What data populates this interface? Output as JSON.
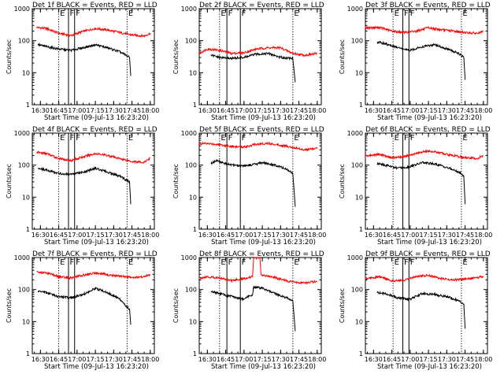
{
  "chart_data": [
    {
      "type": "line",
      "title": "Det 1f BLACK = Events, RED = LLD",
      "xlabel": "Start Time (09-Jul-13 16:23:20)",
      "ylabel": "Counts/sec",
      "ylog": true,
      "ylim": [
        1,
        1000
      ],
      "xlim": [
        "16:23:20",
        "18:03:20"
      ],
      "xticks": [
        "16:30",
        "16:45",
        "17:00",
        "17:15",
        "17:30",
        "17:45",
        "18:00"
      ],
      "yticks": [
        "1",
        "10",
        "100",
        "1000"
      ],
      "markers": [
        "E",
        "F",
        "F",
        "E"
      ],
      "marker_times": [
        "16:45",
        "16:53",
        "16:58",
        "17:41"
      ],
      "series": [
        {
          "name": "RED",
          "color": "#ff0000",
          "x": [
            "16:27",
            "16:35",
            "16:45",
            "16:55",
            "17:05",
            "17:15",
            "17:25",
            "17:35",
            "17:45",
            "17:55",
            "18:00"
          ],
          "values": [
            260,
            240,
            170,
            145,
            195,
            240,
            215,
            180,
            150,
            140,
            170
          ]
        },
        {
          "name": "BLACK",
          "color": "#000000",
          "x": [
            "16:28",
            "16:35",
            "16:45",
            "16:55",
            "17:05",
            "17:15",
            "17:25",
            "17:35",
            "17:40",
            "17:43",
            "17:44"
          ],
          "values": [
            75,
            65,
            55,
            50,
            60,
            75,
            60,
            45,
            35,
            30,
            8
          ]
        }
      ]
    },
    {
      "type": "line",
      "title": "Det 2f BLACK = Events, RED = LLD",
      "xlabel": "Start Time (09-Jul-13 16:23:20)",
      "ylabel": "Counts/sec",
      "ylog": true,
      "ylim": [
        1,
        1000
      ],
      "xlim": [
        "16:23:20",
        "18:03:20"
      ],
      "xticks": [
        "16:30",
        "16:45",
        "17:00",
        "17:15",
        "17:30",
        "17:45",
        "18:00"
      ],
      "yticks": [
        "1",
        "10",
        "100",
        "1000"
      ],
      "markers": [
        "E",
        "F",
        "F",
        "E"
      ],
      "marker_times": [
        "16:40",
        "16:46",
        "16:57",
        "17:40"
      ],
      "series": [
        {
          "name": "RED",
          "color": "#ff0000",
          "x": [
            "16:23",
            "16:30",
            "16:40",
            "16:50",
            "17:00",
            "17:10",
            "17:20",
            "17:30",
            "17:40",
            "17:50",
            "18:00"
          ],
          "values": [
            40,
            55,
            50,
            40,
            42,
            55,
            60,
            60,
            40,
            35,
            40
          ]
        },
        {
          "name": "BLACK",
          "color": "#000000",
          "x": [
            "16:33",
            "16:40",
            "16:50",
            "17:00",
            "17:10",
            "17:20",
            "17:30",
            "17:40",
            "17:42"
          ],
          "values": [
            35,
            30,
            28,
            30,
            38,
            40,
            30,
            28,
            5
          ]
        }
      ]
    },
    {
      "type": "line",
      "title": "Det 3f BLACK = Events, RED = LLD",
      "xlabel": "Start Time (09-Jul-13 16:23:20)",
      "ylabel": "Counts/sec",
      "ylog": true,
      "ylim": [
        1,
        1000
      ],
      "xlim": [
        "16:23:20",
        "18:03:20"
      ],
      "xticks": [
        "16:30",
        "16:45",
        "17:00",
        "17:15",
        "17:30",
        "17:45",
        "18:00"
      ],
      "yticks": [
        "1",
        "10",
        "100",
        "1000"
      ],
      "markers": [
        "E",
        "F",
        "F",
        "E"
      ],
      "marker_times": [
        "16:46",
        "16:54",
        "16:59",
        "17:42"
      ],
      "series": [
        {
          "name": "RED",
          "color": "#ff0000",
          "x": [
            "16:23",
            "16:35",
            "16:45",
            "16:55",
            "17:05",
            "17:15",
            "17:25",
            "17:35",
            "17:45",
            "17:55",
            "18:00"
          ],
          "values": [
            250,
            260,
            200,
            180,
            200,
            250,
            220,
            200,
            180,
            170,
            190
          ]
        },
        {
          "name": "BLACK",
          "color": "#000000",
          "x": [
            "16:33",
            "16:40",
            "16:50",
            "17:00",
            "17:10",
            "17:20",
            "17:30",
            "17:40",
            "17:44",
            "17:45"
          ],
          "values": [
            90,
            80,
            60,
            50,
            65,
            75,
            55,
            40,
            30,
            6
          ]
        }
      ]
    },
    {
      "type": "line",
      "title": "Det 4f BLACK = Events, RED = LLD",
      "xlabel": "Start Time (09-Jul-13 16:23:20)",
      "ylabel": "Counts/sec",
      "ylog": true,
      "ylim": [
        1,
        1000
      ],
      "xlim": [
        "16:23:20",
        "18:03:20"
      ],
      "xticks": [
        "16:30",
        "16:45",
        "17:00",
        "17:15",
        "17:30",
        "17:45",
        "18:00"
      ],
      "yticks": [
        "1",
        "10",
        "100",
        "1000"
      ],
      "markers": [
        "E",
        "F",
        "F",
        "E"
      ],
      "marker_times": [
        "16:45",
        "16:53",
        "16:58",
        "17:41"
      ],
      "series": [
        {
          "name": "RED",
          "color": "#ff0000",
          "x": [
            "16:27",
            "16:35",
            "16:45",
            "16:55",
            "17:05",
            "17:15",
            "17:25",
            "17:35",
            "17:45",
            "17:55",
            "18:00"
          ],
          "values": [
            250,
            230,
            160,
            140,
            180,
            230,
            200,
            160,
            130,
            120,
            170
          ]
        },
        {
          "name": "BLACK",
          "color": "#000000",
          "x": [
            "16:28",
            "16:35",
            "16:45",
            "16:55",
            "17:05",
            "17:15",
            "17:25",
            "17:35",
            "17:40",
            "17:43",
            "17:44"
          ],
          "values": [
            80,
            70,
            55,
            50,
            60,
            80,
            60,
            45,
            35,
            30,
            6
          ]
        }
      ]
    },
    {
      "type": "line",
      "title": "Det 5f BLACK = Events, RED = LLD",
      "xlabel": "Start Time (09-Jul-13 16:23:20)",
      "ylabel": "Counts/sec",
      "ylog": true,
      "ylim": [
        1,
        1000
      ],
      "xlim": [
        "16:23:20",
        "18:03:20"
      ],
      "xticks": [
        "16:30",
        "16:45",
        "17:00",
        "17:15",
        "17:30",
        "17:45",
        "18:00"
      ],
      "yticks": [
        "1",
        "10",
        "100",
        "1000"
      ],
      "markers": [
        "E",
        "F",
        "F",
        "E"
      ],
      "marker_times": [
        "16:40",
        "16:46",
        "16:57",
        "17:40"
      ],
      "series": [
        {
          "name": "RED",
          "color": "#ff0000",
          "x": [
            "16:23",
            "16:30",
            "16:40",
            "16:50",
            "17:00",
            "17:10",
            "17:20",
            "17:30",
            "17:40",
            "17:50",
            "18:00"
          ],
          "values": [
            470,
            470,
            440,
            380,
            370,
            450,
            480,
            420,
            360,
            300,
            330
          ]
        },
        {
          "name": "BLACK",
          "color": "#000000",
          "x": [
            "16:33",
            "16:37",
            "16:45",
            "16:55",
            "17:05",
            "17:15",
            "17:25",
            "17:35",
            "17:40",
            "17:42"
          ],
          "values": [
            110,
            140,
            110,
            95,
            100,
            120,
            100,
            75,
            55,
            5
          ]
        }
      ]
    },
    {
      "type": "line",
      "title": "Det 6f BLACK = Events, RED = LLD",
      "xlabel": "Start Time (09-Jul-13 16:23:20)",
      "ylabel": "Counts/sec",
      "ylog": true,
      "ylim": [
        1,
        1000
      ],
      "xlim": [
        "16:23:20",
        "18:03:20"
      ],
      "xticks": [
        "16:30",
        "16:45",
        "17:00",
        "17:15",
        "17:30",
        "17:45",
        "18:00"
      ],
      "yticks": [
        "1",
        "10",
        "100",
        "1000"
      ],
      "markers": [
        "E",
        "F",
        "F",
        "E"
      ],
      "marker_times": [
        "16:46",
        "16:54",
        "16:59",
        "17:42"
      ],
      "series": [
        {
          "name": "RED",
          "color": "#ff0000",
          "x": [
            "16:23",
            "16:35",
            "16:45",
            "16:55",
            "17:05",
            "17:15",
            "17:25",
            "17:35",
            "17:45",
            "17:55",
            "18:00"
          ],
          "values": [
            190,
            220,
            170,
            180,
            230,
            280,
            240,
            200,
            170,
            160,
            200
          ]
        },
        {
          "name": "BLACK",
          "color": "#000000",
          "x": [
            "16:33",
            "16:40",
            "16:50",
            "17:00",
            "17:10",
            "17:20",
            "17:30",
            "17:40",
            "17:44",
            "17:45"
          ],
          "values": [
            110,
            100,
            80,
            90,
            120,
            110,
            85,
            60,
            45,
            6
          ]
        }
      ]
    },
    {
      "type": "line",
      "title": "Det 7f BLACK = Events, RED = LLD",
      "xlabel": "Start Time (09-Jul-13 16:23:20)",
      "ylabel": "Counts/sec",
      "ylog": true,
      "ylim": [
        1,
        1000
      ],
      "xlim": [
        "16:23:20",
        "18:03:20"
      ],
      "xticks": [
        "16:30",
        "16:45",
        "17:00",
        "17:15",
        "17:30",
        "17:45",
        "18:00"
      ],
      "yticks": [
        "1",
        "10",
        "100",
        "1000"
      ],
      "markers": [
        "E",
        "F",
        "F",
        "E"
      ],
      "marker_times": [
        "16:45",
        "16:53",
        "16:58",
        "17:41"
      ],
      "series": [
        {
          "name": "RED",
          "color": "#ff0000",
          "x": [
            "16:27",
            "16:35",
            "16:45",
            "16:55",
            "17:05",
            "17:15",
            "17:25",
            "17:35",
            "17:45",
            "17:55",
            "18:00"
          ],
          "values": [
            350,
            330,
            250,
            230,
            280,
            330,
            290,
            260,
            240,
            250,
            300
          ]
        },
        {
          "name": "BLACK",
          "color": "#000000",
          "x": [
            "16:28",
            "16:35",
            "16:45",
            "16:55",
            "17:05",
            "17:15",
            "17:25",
            "17:35",
            "17:40",
            "17:43",
            "17:44"
          ],
          "values": [
            90,
            80,
            60,
            55,
            70,
            110,
            80,
            50,
            30,
            25,
            8
          ]
        }
      ]
    },
    {
      "type": "line",
      "title": "Det 8f BLACK = Events, RED = LLD",
      "xlabel": "Start Time (09-Jul-13 16:23:20)",
      "ylabel": "Counts/sec",
      "ylog": true,
      "ylim": [
        1,
        1000
      ],
      "xlim": [
        "16:23:20",
        "18:03:20"
      ],
      "xticks": [
        "16:30",
        "16:45",
        "17:00",
        "17:15",
        "17:30",
        "17:45",
        "18:00"
      ],
      "yticks": [
        "1",
        "10",
        "100",
        "1000"
      ],
      "markers": [
        "E",
        "F",
        "F",
        "E"
      ],
      "marker_times": [
        "16:40",
        "16:46",
        "16:57",
        "17:40"
      ],
      "series": [
        {
          "name": "RED",
          "color": "#ff0000",
          "x": [
            "16:23",
            "16:30",
            "16:40",
            "16:50",
            "17:00",
            "17:07",
            "17:08",
            "17:13",
            "17:14",
            "17:20",
            "17:30",
            "17:40",
            "17:50",
            "18:00"
          ],
          "values": [
            230,
            250,
            230,
            190,
            220,
            250,
            1000,
            1000,
            280,
            270,
            210,
            170,
            160,
            180
          ]
        },
        {
          "name": "BLACK",
          "color": "#000000",
          "x": [
            "16:33",
            "16:40",
            "16:50",
            "17:00",
            "17:07",
            "17:08",
            "17:15",
            "17:25",
            "17:35",
            "17:40",
            "17:42"
          ],
          "values": [
            90,
            75,
            60,
            50,
            70,
            120,
            110,
            75,
            55,
            45,
            5
          ]
        }
      ]
    },
    {
      "type": "line",
      "title": "Det 9f BLACK = Events, RED = LLD",
      "xlabel": "Start Time (09-Jul-13 16:23:20)",
      "ylabel": "Counts/sec",
      "ylog": true,
      "ylim": [
        1,
        1000
      ],
      "xlim": [
        "16:23:20",
        "18:03:20"
      ],
      "xticks": [
        "16:30",
        "16:45",
        "17:00",
        "17:15",
        "17:30",
        "17:45",
        "18:00"
      ],
      "yticks": [
        "1",
        "10",
        "100",
        "1000"
      ],
      "markers": [
        "E",
        "F",
        "F",
        "E"
      ],
      "marker_times": [
        "16:46",
        "16:54",
        "16:59",
        "17:42"
      ],
      "series": [
        {
          "name": "RED",
          "color": "#ff0000",
          "x": [
            "16:23",
            "16:35",
            "16:45",
            "16:55",
            "17:05",
            "17:15",
            "17:25",
            "17:35",
            "17:45",
            "17:55",
            "18:00"
          ],
          "values": [
            220,
            250,
            190,
            190,
            260,
            280,
            220,
            200,
            210,
            230,
            260
          ]
        },
        {
          "name": "BLACK",
          "color": "#000000",
          "x": [
            "16:33",
            "16:40",
            "16:50",
            "17:00",
            "17:10",
            "17:20",
            "17:30",
            "17:40",
            "17:44",
            "17:45"
          ],
          "values": [
            80,
            75,
            55,
            50,
            75,
            70,
            60,
            45,
            35,
            6
          ]
        }
      ]
    }
  ]
}
